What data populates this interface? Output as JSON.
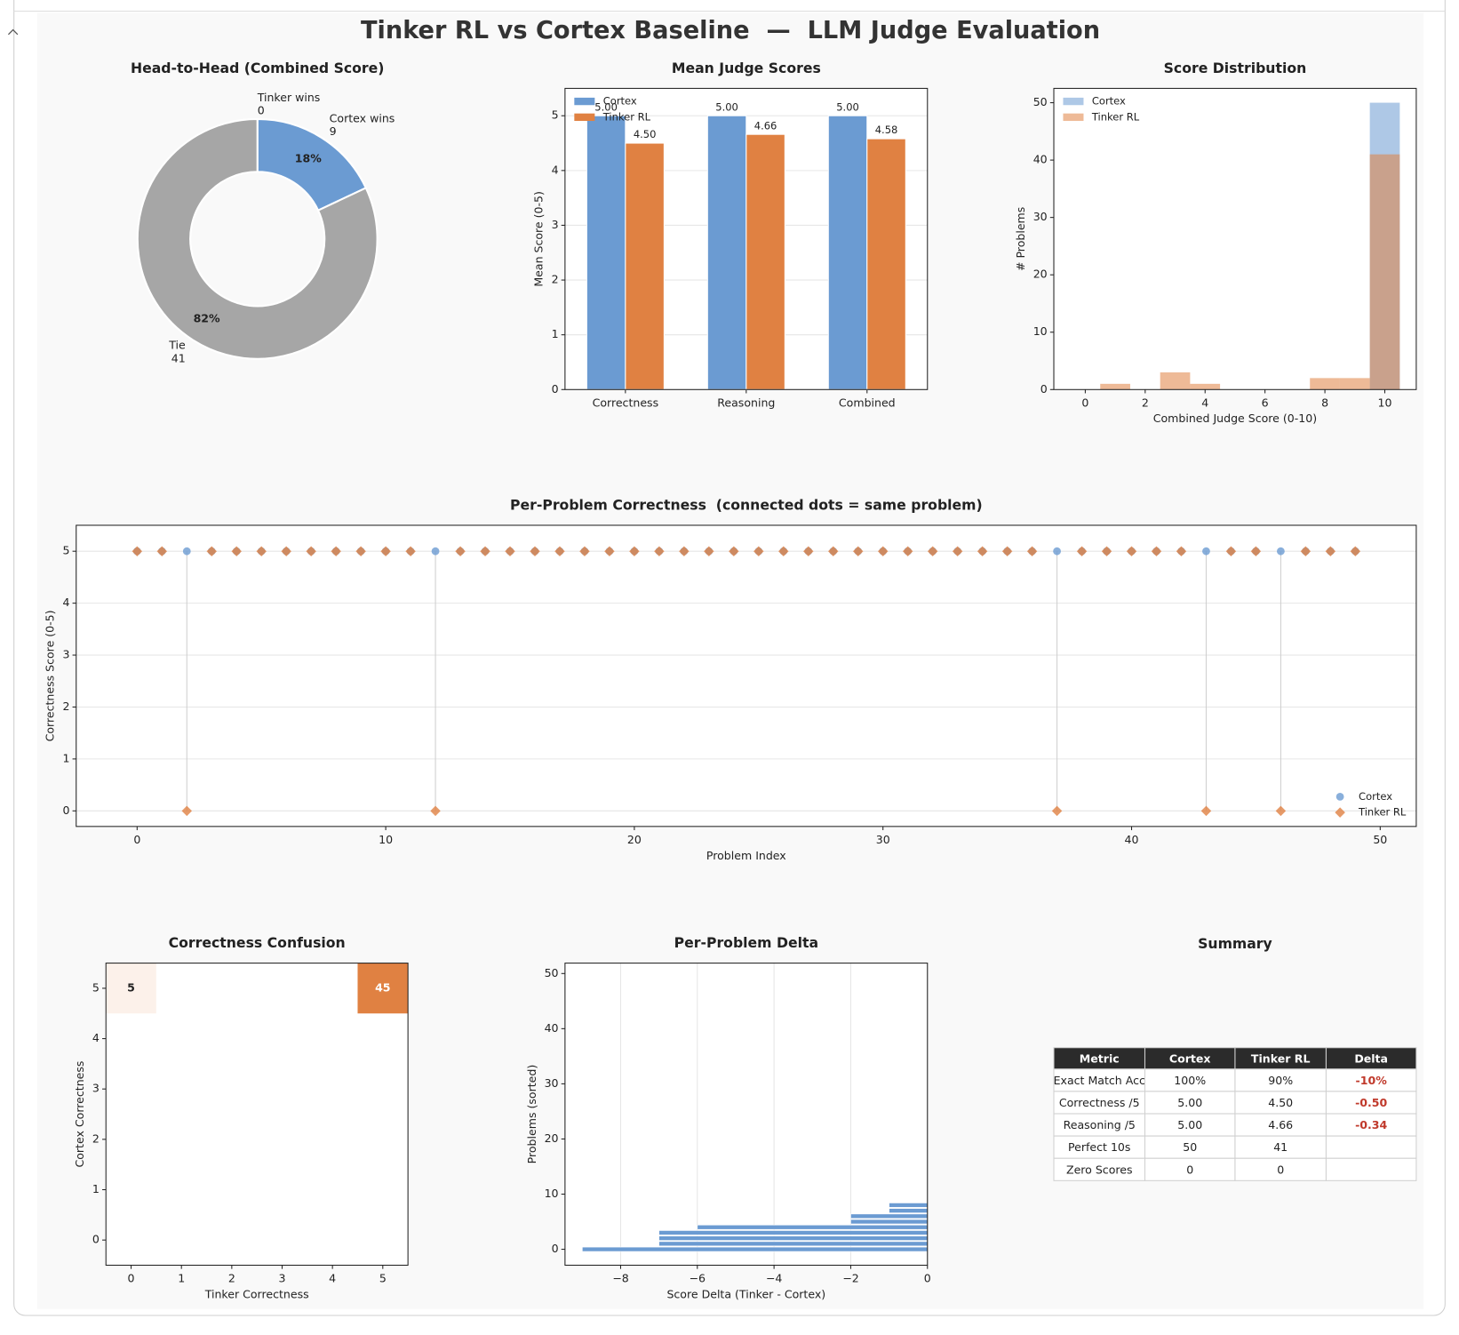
{
  "title": "Tinker RL vs Cortex Baseline  —  LLM Judge Evaluation",
  "chart_data": [
    {
      "type": "pie",
      "title": "Head-to-Head (Combined Score)",
      "categories": [
        "Tinker wins",
        "Cortex wins",
        "Tie"
      ],
      "values": [
        0,
        9,
        41
      ],
      "value_labels": [
        "0%",
        "18%",
        "82%"
      ],
      "colors": [
        "#e08142",
        "#6b9bd2",
        "#a6a6a6"
      ],
      "donut": true,
      "start_angle": 90,
      "clockwise": true
    },
    {
      "type": "bar",
      "title": "Mean Judge Scores",
      "categories": [
        "Correctness",
        "Reasoning",
        "Combined"
      ],
      "series": [
        {
          "name": "Cortex",
          "color": "#6b9bd2",
          "values": [
            5,
            5,
            5
          ],
          "value_labels": [
            "5.00",
            "5.00",
            "5.00"
          ]
        },
        {
          "name": "Tinker RL",
          "color": "#e08142",
          "values": [
            4.5,
            4.66,
            4.58
          ],
          "value_labels": [
            "4.50",
            "4.66",
            "4.58"
          ]
        }
      ],
      "ylabel": "Mean Score (0-5)",
      "ylim": [
        0,
        5.5
      ],
      "yticks": [
        0,
        1,
        2,
        3,
        4,
        5
      ],
      "grid": "y",
      "legend": "upper left"
    },
    {
      "type": "histogram",
      "title": "Score Distribution",
      "bins": [
        -0.5,
        0.5,
        1.5,
        2.5,
        3.5,
        4.5,
        5.5,
        6.5,
        7.5,
        8.5,
        9.5,
        10.5
      ],
      "series": [
        {
          "name": "Cortex",
          "color": "#6b9bd2",
          "values": [
            0,
            0,
            0,
            0,
            0,
            0,
            0,
            0,
            0,
            0,
            50
          ]
        },
        {
          "name": "Tinker RL",
          "color": "#e08142",
          "values": [
            0,
            1,
            0,
            3,
            1,
            0,
            0,
            0,
            2,
            2,
            41
          ]
        }
      ],
      "opacity": 0.55,
      "xlabel": "Combined Judge Score (0-10)",
      "ylabel": "# Problems",
      "xlim": [
        -1.05,
        11.05
      ],
      "xticks": [
        0,
        2,
        4,
        6,
        8,
        10
      ],
      "ylim": [
        0,
        52.5
      ],
      "yticks": [
        0,
        10,
        20,
        30,
        40,
        50
      ],
      "legend": "upper left"
    },
    {
      "type": "scatter",
      "title": "Per-Problem Correctness  (connected dots = same problem)",
      "x": [
        0,
        1,
        2,
        3,
        4,
        5,
        6,
        7,
        8,
        9,
        10,
        11,
        12,
        13,
        14,
        15,
        16,
        17,
        18,
        19,
        20,
        21,
        22,
        23,
        24,
        25,
        26,
        27,
        28,
        29,
        30,
        31,
        32,
        33,
        34,
        35,
        36,
        37,
        38,
        39,
        40,
        41,
        42,
        43,
        44,
        45,
        46,
        47,
        48,
        49
      ],
      "series": [
        {
          "name": "Cortex",
          "color": "#6b9bd2",
          "marker": "circle",
          "values": [
            5,
            5,
            5,
            5,
            5,
            5,
            5,
            5,
            5,
            5,
            5,
            5,
            5,
            5,
            5,
            5,
            5,
            5,
            5,
            5,
            5,
            5,
            5,
            5,
            5,
            5,
            5,
            5,
            5,
            5,
            5,
            5,
            5,
            5,
            5,
            5,
            5,
            5,
            5,
            5,
            5,
            5,
            5,
            5,
            5,
            5,
            5,
            5,
            5,
            5
          ]
        },
        {
          "name": "Tinker RL",
          "color": "#e08142",
          "marker": "diamond",
          "values": [
            5,
            5,
            0,
            5,
            5,
            5,
            5,
            5,
            5,
            5,
            5,
            5,
            0,
            5,
            5,
            5,
            5,
            5,
            5,
            5,
            5,
            5,
            5,
            5,
            5,
            5,
            5,
            5,
            5,
            5,
            5,
            5,
            5,
            5,
            5,
            5,
            5,
            0,
            5,
            5,
            5,
            5,
            5,
            0,
            5,
            5,
            0,
            5,
            5,
            5
          ]
        }
      ],
      "xlabel": "Problem Index",
      "ylabel": "Correctness Score (0-5)",
      "xlim": [
        -2.45,
        51.45
      ],
      "xticks": [
        0,
        10,
        20,
        30,
        40,
        50
      ],
      "ylim": [
        -0.3,
        5.5
      ],
      "yticks": [
        0,
        1,
        2,
        3,
        4,
        5
      ],
      "grid": "y",
      "legend": "lower right",
      "connect": true
    },
    {
      "type": "heatmap",
      "title": "Correctness Confusion",
      "z": [
        [
          0,
          0,
          0,
          0,
          0,
          0
        ],
        [
          0,
          0,
          0,
          0,
          0,
          0
        ],
        [
          0,
          0,
          0,
          0,
          0,
          0
        ],
        [
          0,
          0,
          0,
          0,
          0,
          0
        ],
        [
          0,
          0,
          0,
          0,
          0,
          0
        ],
        [
          5,
          0,
          0,
          0,
          0,
          45
        ]
      ],
      "color": "#e08142",
      "xlabel": "Tinker Correctness",
      "ylabel": "Cortex Correctness",
      "xlim": [
        -0.5,
        5.5
      ],
      "ylim": [
        -0.5,
        5.5
      ],
      "xticks": [
        0,
        1,
        2,
        3,
        4,
        5
      ],
      "yticks": [
        0,
        1,
        2,
        3,
        4,
        5
      ]
    },
    {
      "type": "barh",
      "title": "Per-Problem Delta",
      "values": [
        -9,
        -7,
        -7,
        -7,
        -6,
        -2,
        -2,
        -1,
        -1,
        0,
        0,
        0,
        0,
        0,
        0,
        0,
        0,
        0,
        0,
        0,
        0,
        0,
        0,
        0,
        0,
        0,
        0,
        0,
        0,
        0,
        0,
        0,
        0,
        0,
        0,
        0,
        0,
        0,
        0,
        0,
        0,
        0,
        0,
        0,
        0,
        0,
        0,
        0,
        0,
        0
      ],
      "color": "#6b9bd2",
      "xlabel": "Score Delta (Tinker - Cortex)",
      "ylabel": "Problems (sorted)",
      "xlim": [
        -9.45,
        0
      ],
      "xticks": [
        {
          "value": -8,
          "label": "−8"
        },
        {
          "value": -6,
          "label": "−6"
        },
        {
          "value": -4,
          "label": "−4"
        },
        {
          "value": -2,
          "label": "−2"
        },
        0
      ],
      "ylim": [
        -2.89,
        51.89
      ],
      "yticks": [
        0,
        10,
        20,
        30,
        40,
        50
      ],
      "grid": "x"
    }
  ],
  "summary": {
    "title": "Summary",
    "columns": [
      "Metric",
      "Cortex",
      "Tinker RL",
      "Delta"
    ],
    "rows": [
      [
        "Exact Match Acc",
        "100%",
        "90%",
        "-10%"
      ],
      [
        "Correctness /5",
        "5.00",
        "4.50",
        "-0.50"
      ],
      [
        "Reasoning /5",
        "5.00",
        "4.66",
        "-0.34"
      ],
      [
        "Perfect 10s",
        "50",
        "41",
        null
      ],
      [
        "Zero Scores",
        "0",
        "0",
        null
      ]
    ],
    "delta_color": "#c0392b"
  }
}
